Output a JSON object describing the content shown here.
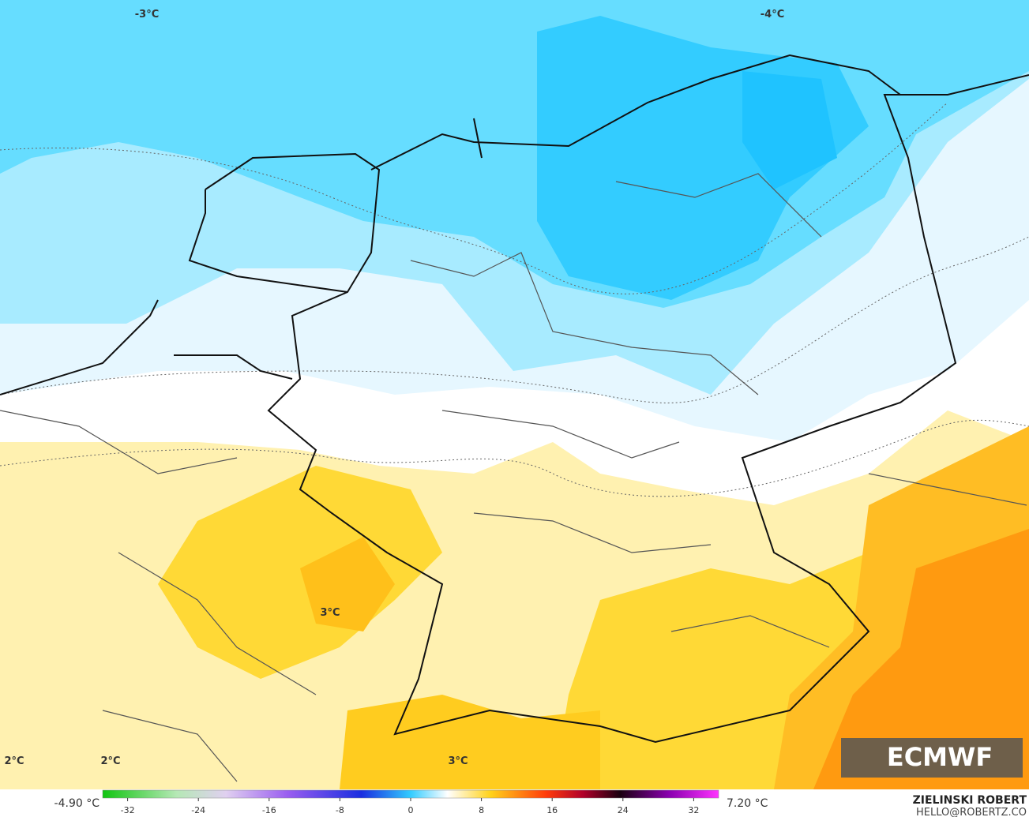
{
  "map_labels": [
    "-3°C",
    "-4°C",
    "3°C",
    "2°C",
    "2°C",
    "3°C"
  ],
  "colorbar": {
    "min_label": "-4.90 °C",
    "max_label": "7.20 °C",
    "ticks": [
      -32,
      -24,
      -16,
      -8,
      0,
      8,
      16,
      24,
      32
    ]
  },
  "logo": "ECMWF",
  "credit": {
    "name": "ZIELINSKI ROBERT",
    "contact": "HELLO@ROBERTZ.CO"
  }
}
